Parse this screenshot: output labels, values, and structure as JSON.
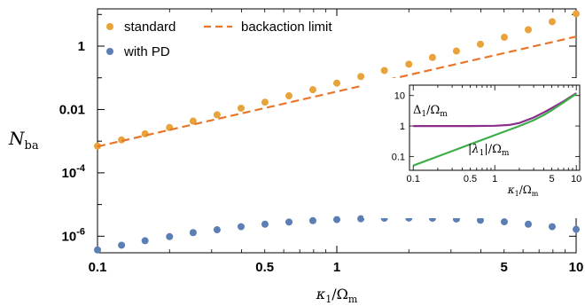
{
  "chart_data": [
    {
      "type": "scatter",
      "xscale": "log",
      "yscale": "log",
      "xlim": [
        0.1,
        10
      ],
      "ylim": [
        3e-07,
        15
      ],
      "xlabel": "κ₁/Ω_m",
      "ylabel": "N_ba",
      "xticks": [
        {
          "value": 0.1,
          "label": "0.1"
        },
        {
          "value": 0.5,
          "label": "0.5"
        },
        {
          "value": 1,
          "label": "1"
        },
        {
          "value": 5,
          "label": "5"
        },
        {
          "value": 10,
          "label": "10"
        }
      ],
      "yticks": [
        {
          "value": 1e-06,
          "label": "10-6",
          "base": "10",
          "exp": "-6"
        },
        {
          "value": 0.0001,
          "label": "10-4",
          "base": "10",
          "exp": "-4"
        },
        {
          "value": 0.01,
          "label": "0.01"
        },
        {
          "value": 1,
          "label": "1"
        }
      ],
      "legend": {
        "placement": "top-left"
      },
      "series": [
        {
          "name": "standard",
          "style": "points",
          "color": "#E8A33A",
          "x": [
            0.1,
            0.126,
            0.158,
            0.2,
            0.251,
            0.316,
            0.398,
            0.501,
            0.631,
            0.794,
            1,
            1.26,
            1.58,
            2,
            2.51,
            3.16,
            3.98,
            5.01,
            6.31,
            7.94,
            10
          ],
          "y": [
            0.0007,
            0.0011,
            0.0017,
            0.0027,
            0.0043,
            0.0068,
            0.011,
            0.017,
            0.027,
            0.042,
            0.068,
            0.11,
            0.17,
            0.27,
            0.44,
            0.7,
            1.15,
            1.9,
            3.3,
            5.9,
            10.5
          ]
        },
        {
          "name": "with PD",
          "style": "points",
          "color": "#5B7EB5",
          "x": [
            0.1,
            0.126,
            0.158,
            0.2,
            0.251,
            0.316,
            0.398,
            0.501,
            0.631,
            0.794,
            1,
            1.26,
            1.58,
            2,
            2.51,
            3.16,
            3.98,
            5.01,
            6.31,
            7.94,
            10
          ],
          "y": [
            3.7e-07,
            5.2e-07,
            7.2e-07,
            9.7e-07,
            1.3e-06,
            1.6e-06,
            2e-06,
            2.4e-06,
            2.8e-06,
            3.1e-06,
            3.35e-06,
            3.55e-06,
            3.7e-06,
            3.75e-06,
            3.7e-06,
            3.5e-06,
            3.2e-06,
            2.85e-06,
            2.4e-06,
            2e-06,
            1.65e-06
          ]
        },
        {
          "name": "backaction limit",
          "style": "dashed-line",
          "color": "#E8762B",
          "x": [
            0.1,
            10
          ],
          "y": [
            0.00068,
            2.0
          ]
        }
      ]
    },
    {
      "type": "line",
      "xscale": "log",
      "yscale": "log",
      "xlim": [
        0.09,
        11
      ],
      "ylim": [
        0.035,
        22
      ],
      "xlabel": "κ₁/Ω_m",
      "xticks": [
        {
          "value": 0.1,
          "label": "0.1"
        },
        {
          "value": 0.5,
          "label": "0.5"
        },
        {
          "value": 1,
          "label": "1"
        },
        {
          "value": 5,
          "label": "5"
        },
        {
          "value": 10,
          "label": "10"
        }
      ],
      "yticks": [
        {
          "value": 0.1,
          "label": "0.1"
        },
        {
          "value": 1,
          "label": "1"
        },
        {
          "value": 10,
          "label": "10"
        }
      ],
      "series": [
        {
          "name": "Δ₁/Ω_m",
          "color": "#8B2E8B",
          "x": [
            0.1,
            0.2,
            0.5,
            1,
            1.5,
            2,
            3,
            4,
            5,
            7,
            10
          ],
          "y": [
            1.0,
            1.0,
            1.0,
            1.02,
            1.08,
            1.25,
            1.9,
            2.8,
            3.9,
            6.5,
            12
          ]
        },
        {
          "name": "|λ₁|/Ω_m",
          "color": "#3DAE4A",
          "x": [
            0.1,
            0.2,
            0.5,
            1,
            2,
            3,
            4,
            5,
            7,
            10
          ],
          "y": [
            0.05,
            0.1,
            0.25,
            0.5,
            1.0,
            1.55,
            2.3,
            3.3,
            6.0,
            11.5
          ]
        }
      ]
    }
  ]
}
